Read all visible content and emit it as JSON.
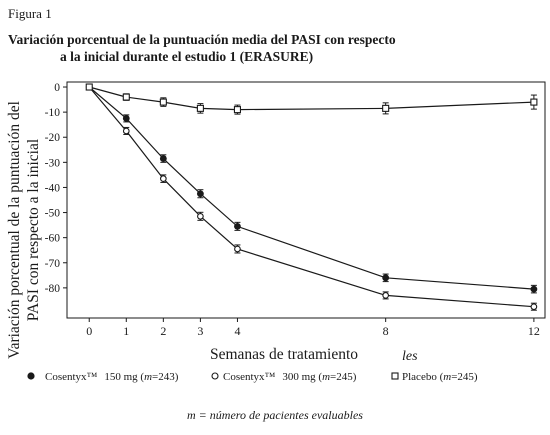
{
  "figure_label": "Figura 1",
  "title_line1": "Variación porcentual de la puntuación media del PASI con respecto",
  "title_line2": "a la inicial durante el estudio 1 (ERASURE)",
  "footnote": "m = número de pacientes evaluables",
  "stray_mark": "les",
  "chart_data": {
    "type": "line",
    "title": "Variación porcentual de la puntuación media del PASI con respecto a la inicial durante el estudio 1 (ERASURE)",
    "xlabel": "Semanas de tratamiento",
    "ylabel_lines": [
      "Variación porcentual de la puntuación del",
      "PASI con respecto a la inicial"
    ],
    "x": [
      0,
      1,
      2,
      3,
      4,
      8,
      12
    ],
    "x_ticks": [
      0,
      1,
      2,
      3,
      4,
      8,
      12
    ],
    "y_ticks": [
      0,
      -10,
      -20,
      -30,
      -40,
      -50,
      -60,
      -70,
      -80
    ],
    "xlim": [
      -0.6,
      12.3
    ],
    "ylim": [
      -92,
      2
    ],
    "grid": false,
    "legend_position": "bottom",
    "series": [
      {
        "name": "Cosentyx™ 150 mg (m=243)",
        "marker": "filled-circle",
        "values": [
          0,
          -12.5,
          -28.5,
          -42.5,
          -55.5,
          -76,
          -80.5
        ],
        "err": [
          0.9,
          1.4,
          1.5,
          1.6,
          1.6,
          1.5,
          1.5
        ]
      },
      {
        "name": "Cosentyx™ 300 mg (m=245)",
        "marker": "open-circle",
        "values": [
          0,
          -17.5,
          -36.5,
          -51.5,
          -64.5,
          -83,
          -87.5
        ],
        "err": [
          0.9,
          1.4,
          1.5,
          1.6,
          1.6,
          1.4,
          1.4
        ]
      },
      {
        "name": "Placebo (m=245)",
        "marker": "open-square",
        "values": [
          0,
          -4,
          -6,
          -8.5,
          -9,
          -8.5,
          -6
        ],
        "err": [
          0.9,
          1.3,
          1.7,
          1.9,
          1.8,
          2.2,
          2.8
        ]
      }
    ],
    "legend": {
      "s1_brand": "Cosentyx™",
      "s1_dose": "150 mg (",
      "s1_m": "m",
      "s1_n": "=243)",
      "s2_brand": "Cosentyx™",
      "s2_dose": "300 mg (",
      "s2_m": "m",
      "s2_n": "=245)",
      "s3_name": "Placebo (",
      "s3_m": "m",
      "s3_n": "=245)"
    }
  },
  "colors": {
    "ink": "#1a1a1a",
    "background": "#ffffff"
  }
}
